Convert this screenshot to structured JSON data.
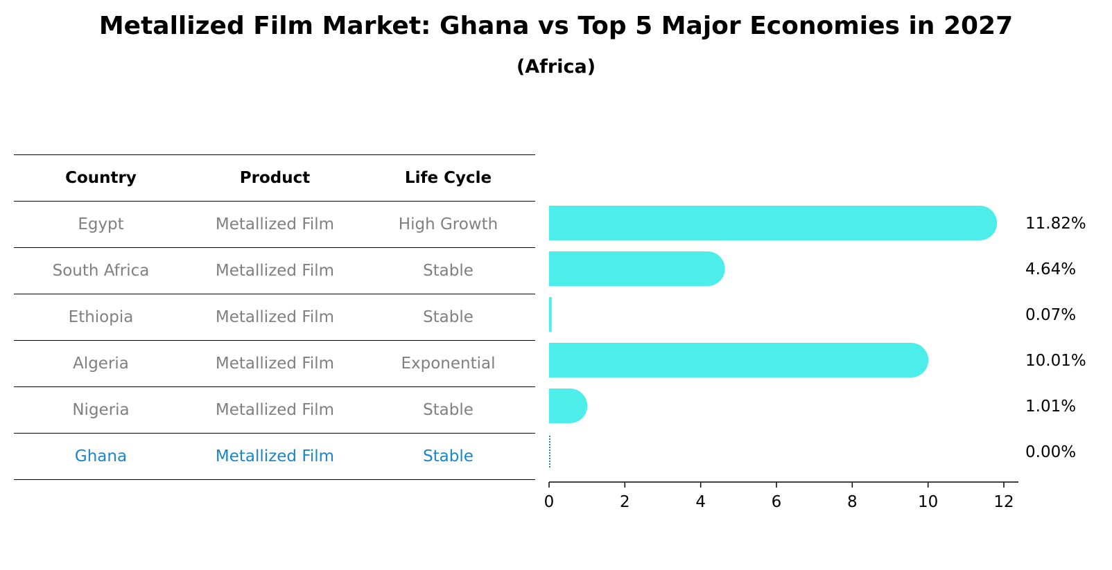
{
  "title": "Metallized Film Market: Ghana vs Top 5 Major Economies in 2027",
  "subtitle": "(Africa)",
  "table": {
    "headers": [
      "Country",
      "Product",
      "Life Cycle"
    ],
    "rows": [
      {
        "country": "Egypt",
        "product": "Metallized Film",
        "life_cycle": "High Growth"
      },
      {
        "country": "South Africa",
        "product": "Metallized Film",
        "life_cycle": "Stable"
      },
      {
        "country": "Ethiopia",
        "product": "Metallized Film",
        "life_cycle": "Stable"
      },
      {
        "country": "Algeria",
        "product": "Metallized Film",
        "life_cycle": "Exponential"
      },
      {
        "country": "Nigeria",
        "product": "Metallized Film",
        "life_cycle": "Stable"
      },
      {
        "country": "Ghana",
        "product": "Metallized Film",
        "life_cycle": "Stable"
      }
    ],
    "highlight_color": "#1a86c8",
    "text_color": "#808080"
  },
  "chart_data": {
    "type": "bar",
    "orientation": "horizontal",
    "categories": [
      "Egypt",
      "South Africa",
      "Ethiopia",
      "Algeria",
      "Nigeria",
      "Ghana"
    ],
    "values": [
      11.82,
      4.64,
      0.07,
      10.01,
      1.01,
      0.0
    ],
    "value_labels": [
      "11.82%",
      "4.64%",
      "0.07%",
      "10.01%",
      "1.01%",
      "0.00%"
    ],
    "xticks": [
      "0",
      "2",
      "4",
      "6",
      "8",
      "10",
      "12"
    ],
    "xlim": [
      0,
      12.4
    ],
    "bar_color": "#4deeea",
    "highlight_color": "#1a86c8",
    "highlight_category": "Ghana",
    "grid": false
  }
}
